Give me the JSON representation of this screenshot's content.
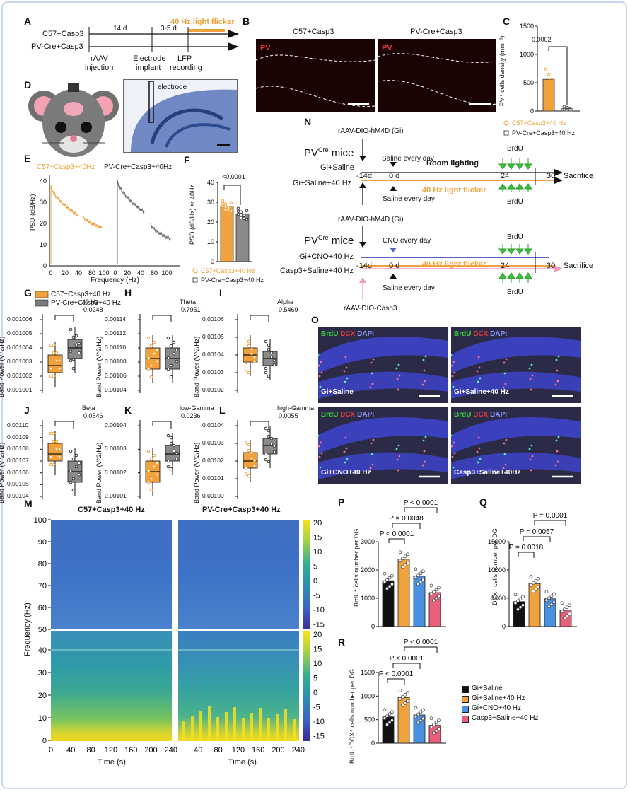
{
  "panel_letters": {
    "A": "A",
    "B": "B",
    "C": "C",
    "D": "D",
    "E": "E",
    "F": "F",
    "G": "G",
    "H": "H",
    "I": "I",
    "J": "J",
    "K": "K",
    "L": "L",
    "M": "M",
    "N": "N",
    "O": "O",
    "P": "P",
    "Q": "Q",
    "R": "R"
  },
  "panelA": {
    "row1": "C57+Casp3",
    "row2": "PV-Cre+Casp3",
    "d1": "14 d",
    "d2": "3-5 d",
    "flicker": "40 Hz light flicker",
    "e1a": "rAAV",
    "e1b": "injection",
    "e2a": "Electrode",
    "e2b": "implant",
    "e3a": "LFP",
    "e3b": "recording"
  },
  "panelB": {
    "left_title": "C57+Casp3",
    "right_title": "PV-Cre+Casp3",
    "stain": "PV"
  },
  "panelC": {
    "ylabel": "PV⁺ cells density (mm⁻³)",
    "yticks": [
      "0",
      "500",
      "1000",
      "1500"
    ],
    "pval": "0.0002",
    "legend1": "C57+Casp3+40 Hz",
    "legend2": "PV-Cre+Casp3+40 Hz",
    "colors": {
      "orange": "#f2a23c",
      "gray": "#7a7a7a"
    },
    "chart_data": {
      "type": "bar",
      "categories": [
        "C57+Casp3+40 Hz",
        "PV-Cre+Casp3+40 Hz"
      ],
      "values": [
        560,
        40
      ],
      "ylim": [
        0,
        1500
      ],
      "ylabel": "PV+ cells density (mm-3)",
      "annotation": "0.0002"
    }
  },
  "panelD": {
    "label": "electrode"
  },
  "panelE": {
    "leg1": "C57+Casp3+40Hz",
    "leg2": "PV-Cre+Casp3+40Hz",
    "ylabel": "PSD (dB/Hz)",
    "yticks": [
      "40",
      "30",
      "20",
      "10",
      "0"
    ],
    "xlabel": "Frequency (Hz)",
    "xticks": [
      "0",
      "20",
      "40",
      "60",
      "80",
      "100"
    ]
  },
  "panelF": {
    "ylabel": "PSD (dB/Hz) at 40Hz",
    "yticks": [
      "0",
      "10",
      "20",
      "30",
      "40"
    ],
    "pval": "<0.0001",
    "legend1": "C57+Casp3+40 Hz",
    "legend2": "PV-Cre+Casp3+40 Hz",
    "chart_data": {
      "type": "bar",
      "categories": [
        "C57+Casp3+40 Hz",
        "PV-Cre+Casp3+40 Hz"
      ],
      "values": [
        28,
        24
      ],
      "ylim": [
        0,
        40
      ],
      "ylabel": "PSD (dB/Hz) at 40Hz",
      "annotation": "<0.0001"
    }
  },
  "panelGL": {
    "legend1": "C57+Casp3+40 Hz",
    "legend2": "PV-Cre+Casp3+40 Hz",
    "ylabel": "Band Power (V^2/Hz)",
    "plots": [
      {
        "title": "40 Hz",
        "pval": "0.0248",
        "yticks": [
          "0.001006",
          "0.001005",
          "0.001004",
          "0.001003",
          "0.001002",
          "0.001001"
        ]
      },
      {
        "title": "Theta",
        "pval": "0.7951",
        "yticks": [
          "0.00114",
          "0.00112",
          "0.00110",
          "0.00108",
          "0.00106",
          "0.00104"
        ]
      },
      {
        "title": "Alpha",
        "pval": "0.5469",
        "yticks": [
          "0.00106",
          "0.00105",
          "0.00104",
          "0.00103",
          "0.00102"
        ]
      },
      {
        "title": "Beta",
        "pval": "0.0546",
        "yticks": [
          "0.00110",
          "0.00109",
          "0.00108",
          "0.00107",
          "0.00106",
          "0.00105",
          "0.00104"
        ]
      },
      {
        "title": "low-Gamma",
        "pval": "0.0236",
        "yticks": [
          "0.00104",
          "0.00103",
          "0.00102",
          "0.00101"
        ]
      },
      {
        "title": "high-Gamma",
        "pval": "0.0055",
        "yticks": [
          "0.00104",
          "0.00103",
          "0.00102",
          "0.00101",
          "0.00100"
        ]
      }
    ]
  },
  "panelM": {
    "title_left": "C57+Casp3+40 Hz",
    "title_right": "PV-Cre+Casp3+40 Hz",
    "ylabel": "Frequency (Hz)",
    "xlabel": "Time (s)",
    "yticks_top": [
      "100",
      "90",
      "80",
      "70",
      "60",
      "50"
    ],
    "yticks_bottom": [
      "40",
      "30",
      "20",
      "10",
      "0"
    ],
    "xticks": [
      "0",
      "40",
      "80",
      "120",
      "160",
      "200",
      "240"
    ],
    "cbar": [
      "20",
      "15",
      "10",
      "5",
      "0",
      "-5",
      "-10",
      "-15"
    ]
  },
  "panelN": {
    "virus1": "rAAV-DIO-hM4D (Gi)",
    "mice": "PV",
    "cre": "Cre",
    "mice_suffix": " mice",
    "saline_top": "Saline every day",
    "g1": "Gi+Saline",
    "g2": "Gi+Saline+40 Hz",
    "m14": "-14d",
    "d0": "0 d",
    "room": "Room lighting",
    "d24": "24",
    "d30": "30",
    "sacrifice": "Sacrifice",
    "flicker": "40 Hz light flicker",
    "brdu": "BrdU",
    "saline_bot": "Saline every day",
    "virus2": "rAAV-DIO-hM4D (Gi)",
    "cno": "CNO every day",
    "g3": "Gi+CNO+40 Hz",
    "g4": "Casp3+Saline+40 Hz",
    "virus3": "rAAV-DIO-Casp3"
  },
  "panelO": {
    "brdu": "BrdU",
    "dcx": "DCX",
    "dapi": "DAPI",
    "cond1": "Gi+Saline",
    "cond2": "Gi+Saline+40 Hz",
    "cond3": "Gi+CNO+40 Hz",
    "cond4": "Casp3+Saline+40Hz"
  },
  "panelP": {
    "ylabel": "BrdU⁺ cells number per DG",
    "yticks": [
      "0",
      "1000",
      "2000",
      "3000"
    ],
    "p1": "P < 0.0001",
    "p2": "P = 0.0048",
    "p3": "P < 0.0001",
    "chart_data": {
      "type": "bar",
      "categories": [
        "Gi+Saline",
        "Gi+Saline+40 Hz",
        "Gi+CNO+40 Hz",
        "Casp3+Saline+40 Hz"
      ],
      "values": [
        1620,
        2380,
        1780,
        1200
      ],
      "ylim": [
        0,
        3000
      ],
      "ylabel": "BrdU+ cells number per DG"
    }
  },
  "panelQ": {
    "ylabel": "DCX⁺ cells number per DG",
    "yticks": [
      "0",
      "5000",
      "10000",
      "15000"
    ],
    "p1": "P = 0.0018",
    "p2": "P = 0.0057",
    "p3": "P = 0.0001",
    "chart_data": {
      "type": "bar",
      "categories": [
        "Gi+Saline",
        "Gi+Saline+40 Hz",
        "Gi+CNO+40 Hz",
        "Casp3+Saline+40 Hz"
      ],
      "values": [
        4400,
        7600,
        4900,
        2900
      ],
      "ylim": [
        0,
        15000
      ],
      "ylabel": "DCX+ cells number per DG"
    }
  },
  "panelR": {
    "ylabel": "BrdU⁺DCX⁺ cells number per DG",
    "yticks": [
      "0",
      "500",
      "1000",
      "1500"
    ],
    "p1": "P < 0.0001",
    "p2": "P < 0.0001",
    "p3": "P < 0.0001",
    "chart_data": {
      "type": "bar",
      "categories": [
        "Gi+Saline",
        "Gi+Saline+40 Hz",
        "Gi+CNO+40 Hz",
        "Casp3+Saline+40 Hz"
      ],
      "values": [
        560,
        970,
        600,
        380
      ],
      "ylim": [
        0,
        1500
      ],
      "ylabel": "BrdU+DCX+ cells number per DG"
    }
  },
  "legendPQR": {
    "items": [
      "Gi+Saline",
      "Gi+Saline+40 Hz",
      "Gi+CNO+40 Hz",
      "Casp3+Saline+40 Hz"
    ],
    "colors": [
      "#111111",
      "#f2a23c",
      "#4a90e2",
      "#e8607a"
    ]
  }
}
